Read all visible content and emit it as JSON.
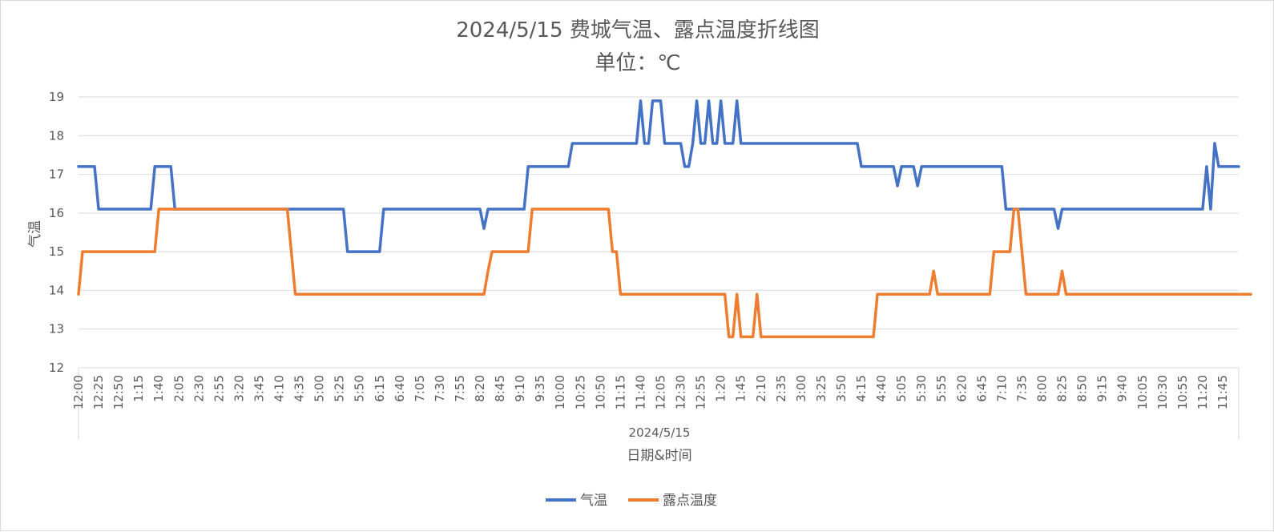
{
  "chart_data": {
    "type": "line",
    "title": "2024/5/15 费城气温、露点温度折线图",
    "subtitle": "单位：℃",
    "xlabel": "日期&时间",
    "xgroup_label": "2024/5/15",
    "ylabel": "气温",
    "ylim": [
      12,
      19
    ],
    "yticks": [
      12,
      13,
      14,
      15,
      16,
      17,
      18,
      19
    ],
    "grid": "horizontal",
    "legend": "bottom",
    "interval_minutes": 5,
    "x_tick_labels": [
      "12:00",
      "12:25",
      "12:50",
      "1:15",
      "1:40",
      "2:05",
      "2:30",
      "2:55",
      "3:20",
      "3:45",
      "4:10",
      "4:35",
      "5:00",
      "5:25",
      "5:50",
      "6:15",
      "6:40",
      "7:05",
      "7:30",
      "7:55",
      "8:20",
      "8:45",
      "9:10",
      "9:35",
      "10:00",
      "10:25",
      "10:50",
      "11:15",
      "11:40",
      "12:05",
      "12:30",
      "12:55",
      "1:20",
      "1:45",
      "2:10",
      "2:35",
      "3:00",
      "3:25",
      "3:50",
      "4:15",
      "4:40",
      "5:05",
      "5:30",
      "5:55",
      "6:20",
      "6:45",
      "7:10",
      "7:35",
      "8:00",
      "8:25",
      "8:50",
      "9:15",
      "9:40",
      "10:05",
      "10:30",
      "10:55",
      "11:20",
      "11:45"
    ],
    "series": [
      {
        "name": "气温",
        "color": "#4472C4",
        "values": [
          17.2,
          17.2,
          17.2,
          17.2,
          17.2,
          16.1,
          16.1,
          16.1,
          16.1,
          16.1,
          16.1,
          16.1,
          16.1,
          16.1,
          16.1,
          16.1,
          16.1,
          16.1,
          16.1,
          17.2,
          17.2,
          17.2,
          17.2,
          17.2,
          16.1,
          16.1,
          16.1,
          16.1,
          16.1,
          16.1,
          16.1,
          16.1,
          16.1,
          16.1,
          16.1,
          16.1,
          16.1,
          16.1,
          16.1,
          16.1,
          16.1,
          16.1,
          16.1,
          16.1,
          16.1,
          16.1,
          16.1,
          16.1,
          16.1,
          16.1,
          16.1,
          16.1,
          16.1,
          16.1,
          16.1,
          16.1,
          16.1,
          16.1,
          16.1,
          16.1,
          16.1,
          16.1,
          16.1,
          16.1,
          16.1,
          16.1,
          16.1,
          15.0,
          15.0,
          15.0,
          15.0,
          15.0,
          15.0,
          15.0,
          15.0,
          15.0,
          16.1,
          16.1,
          16.1,
          16.1,
          16.1,
          16.1,
          16.1,
          16.1,
          16.1,
          16.1,
          16.1,
          16.1,
          16.1,
          16.1,
          16.1,
          16.1,
          16.1,
          16.1,
          16.1,
          16.1,
          16.1,
          16.1,
          16.1,
          16.1,
          16.1,
          15.6,
          16.1,
          16.1,
          16.1,
          16.1,
          16.1,
          16.1,
          16.1,
          16.1,
          16.1,
          16.1,
          17.2,
          17.2,
          17.2,
          17.2,
          17.2,
          17.2,
          17.2,
          17.2,
          17.2,
          17.2,
          17.2,
          17.8,
          17.8,
          17.8,
          17.8,
          17.8,
          17.8,
          17.8,
          17.8,
          17.8,
          17.8,
          17.8,
          17.8,
          17.8,
          17.8,
          17.8,
          17.8,
          17.8,
          18.9,
          17.8,
          17.8,
          18.9,
          18.9,
          18.9,
          17.8,
          17.8,
          17.8,
          17.8,
          17.8,
          17.2,
          17.2,
          17.8,
          18.9,
          17.8,
          17.8,
          18.9,
          17.8,
          17.8,
          18.9,
          17.8,
          17.8,
          17.8,
          18.9,
          17.8,
          17.8,
          17.8,
          17.8,
          17.8,
          17.8,
          17.8,
          17.8,
          17.8,
          17.8,
          17.8,
          17.8,
          17.8,
          17.8,
          17.8,
          17.8,
          17.8,
          17.8,
          17.8,
          17.8,
          17.8,
          17.8,
          17.8,
          17.8,
          17.8,
          17.8,
          17.8,
          17.8,
          17.8,
          17.8,
          17.2,
          17.2,
          17.2,
          17.2,
          17.2,
          17.2,
          17.2,
          17.2,
          17.2,
          16.7,
          17.2,
          17.2,
          17.2,
          17.2,
          16.7,
          17.2,
          17.2,
          17.2,
          17.2,
          17.2,
          17.2,
          17.2,
          17.2,
          17.2,
          17.2,
          17.2,
          17.2,
          17.2,
          17.2,
          17.2,
          17.2,
          17.2,
          17.2,
          17.2,
          17.2,
          17.2,
          16.1,
          16.1,
          16.1,
          16.1,
          16.1,
          16.1,
          16.1,
          16.1,
          16.1,
          16.1,
          16.1,
          16.1,
          16.1,
          15.6,
          16.1,
          16.1,
          16.1,
          16.1,
          16.1,
          16.1,
          16.1,
          16.1,
          16.1,
          16.1,
          16.1,
          16.1,
          16.1,
          16.1,
          16.1,
          16.1,
          16.1,
          16.1,
          16.1,
          16.1,
          16.1,
          16.1,
          16.1,
          16.1,
          16.1,
          16.1,
          16.1,
          16.1,
          16.1,
          16.1,
          16.1,
          16.1,
          16.1,
          16.1,
          16.1,
          16.1,
          17.2,
          16.1,
          17.8,
          17.2,
          17.2,
          17.2,
          17.2,
          17.2,
          17.2
        ]
      },
      {
        "name": "露点温度",
        "color": "#ED7D31",
        "values": [
          13.9,
          15.0,
          15.0,
          15.0,
          15.0,
          15.0,
          15.0,
          15.0,
          15.0,
          15.0,
          15.0,
          15.0,
          15.0,
          15.0,
          15.0,
          15.0,
          15.0,
          15.0,
          15.0,
          15.0,
          16.1,
          16.1,
          16.1,
          16.1,
          16.1,
          16.1,
          16.1,
          16.1,
          16.1,
          16.1,
          16.1,
          16.1,
          16.1,
          16.1,
          16.1,
          16.1,
          16.1,
          16.1,
          16.1,
          16.1,
          16.1,
          16.1,
          16.1,
          16.1,
          16.1,
          16.1,
          16.1,
          16.1,
          16.1,
          16.1,
          16.1,
          16.1,
          16.1,
          15.0,
          13.9,
          13.9,
          13.9,
          13.9,
          13.9,
          13.9,
          13.9,
          13.9,
          13.9,
          13.9,
          13.9,
          13.9,
          13.9,
          13.9,
          13.9,
          13.9,
          13.9,
          13.9,
          13.9,
          13.9,
          13.9,
          13.9,
          13.9,
          13.9,
          13.9,
          13.9,
          13.9,
          13.9,
          13.9,
          13.9,
          13.9,
          13.9,
          13.9,
          13.9,
          13.9,
          13.9,
          13.9,
          13.9,
          13.9,
          13.9,
          13.9,
          13.9,
          13.9,
          13.9,
          13.9,
          13.9,
          13.9,
          13.9,
          14.5,
          15.0,
          15.0,
          15.0,
          15.0,
          15.0,
          15.0,
          15.0,
          15.0,
          15.0,
          15.0,
          16.1,
          16.1,
          16.1,
          16.1,
          16.1,
          16.1,
          16.1,
          16.1,
          16.1,
          16.1,
          16.1,
          16.1,
          16.1,
          16.1,
          16.1,
          16.1,
          16.1,
          16.1,
          16.1,
          16.1,
          15.0,
          15.0,
          13.9,
          13.9,
          13.9,
          13.9,
          13.9,
          13.9,
          13.9,
          13.9,
          13.9,
          13.9,
          13.9,
          13.9,
          13.9,
          13.9,
          13.9,
          13.9,
          13.9,
          13.9,
          13.9,
          13.9,
          13.9,
          13.9,
          13.9,
          13.9,
          13.9,
          13.9,
          13.9,
          12.8,
          12.8,
          13.9,
          12.8,
          12.8,
          12.8,
          12.8,
          13.9,
          12.8,
          12.8,
          12.8,
          12.8,
          12.8,
          12.8,
          12.8,
          12.8,
          12.8,
          12.8,
          12.8,
          12.8,
          12.8,
          12.8,
          12.8,
          12.8,
          12.8,
          12.8,
          12.8,
          12.8,
          12.8,
          12.8,
          12.8,
          12.8,
          12.8,
          12.8,
          12.8,
          12.8,
          12.8,
          13.9,
          13.9,
          13.9,
          13.9,
          13.9,
          13.9,
          13.9,
          13.9,
          13.9,
          13.9,
          13.9,
          13.9,
          13.9,
          13.9,
          14.5,
          13.9,
          13.9,
          13.9,
          13.9,
          13.9,
          13.9,
          13.9,
          13.9,
          13.9,
          13.9,
          13.9,
          13.9,
          13.9,
          13.9,
          15.0,
          15.0,
          15.0,
          15.0,
          15.0,
          16.1,
          16.1,
          15.0,
          13.9,
          13.9,
          13.9,
          13.9,
          13.9,
          13.9,
          13.9,
          13.9,
          13.9,
          14.5,
          13.9,
          13.9,
          13.9,
          13.9,
          13.9,
          13.9,
          13.9,
          13.9,
          13.9,
          13.9,
          13.9,
          13.9,
          13.9,
          13.9,
          13.9,
          13.9,
          13.9,
          13.9,
          13.9,
          13.9,
          13.9,
          13.9,
          13.9,
          13.9,
          13.9,
          13.9,
          13.9,
          13.9,
          13.9,
          13.9,
          13.9,
          13.9,
          13.9,
          13.9,
          13.9,
          13.9,
          13.9,
          13.9,
          13.9,
          13.9,
          13.9,
          13.9,
          13.9,
          13.9,
          13.9,
          13.9,
          13.9
        ]
      }
    ]
  }
}
